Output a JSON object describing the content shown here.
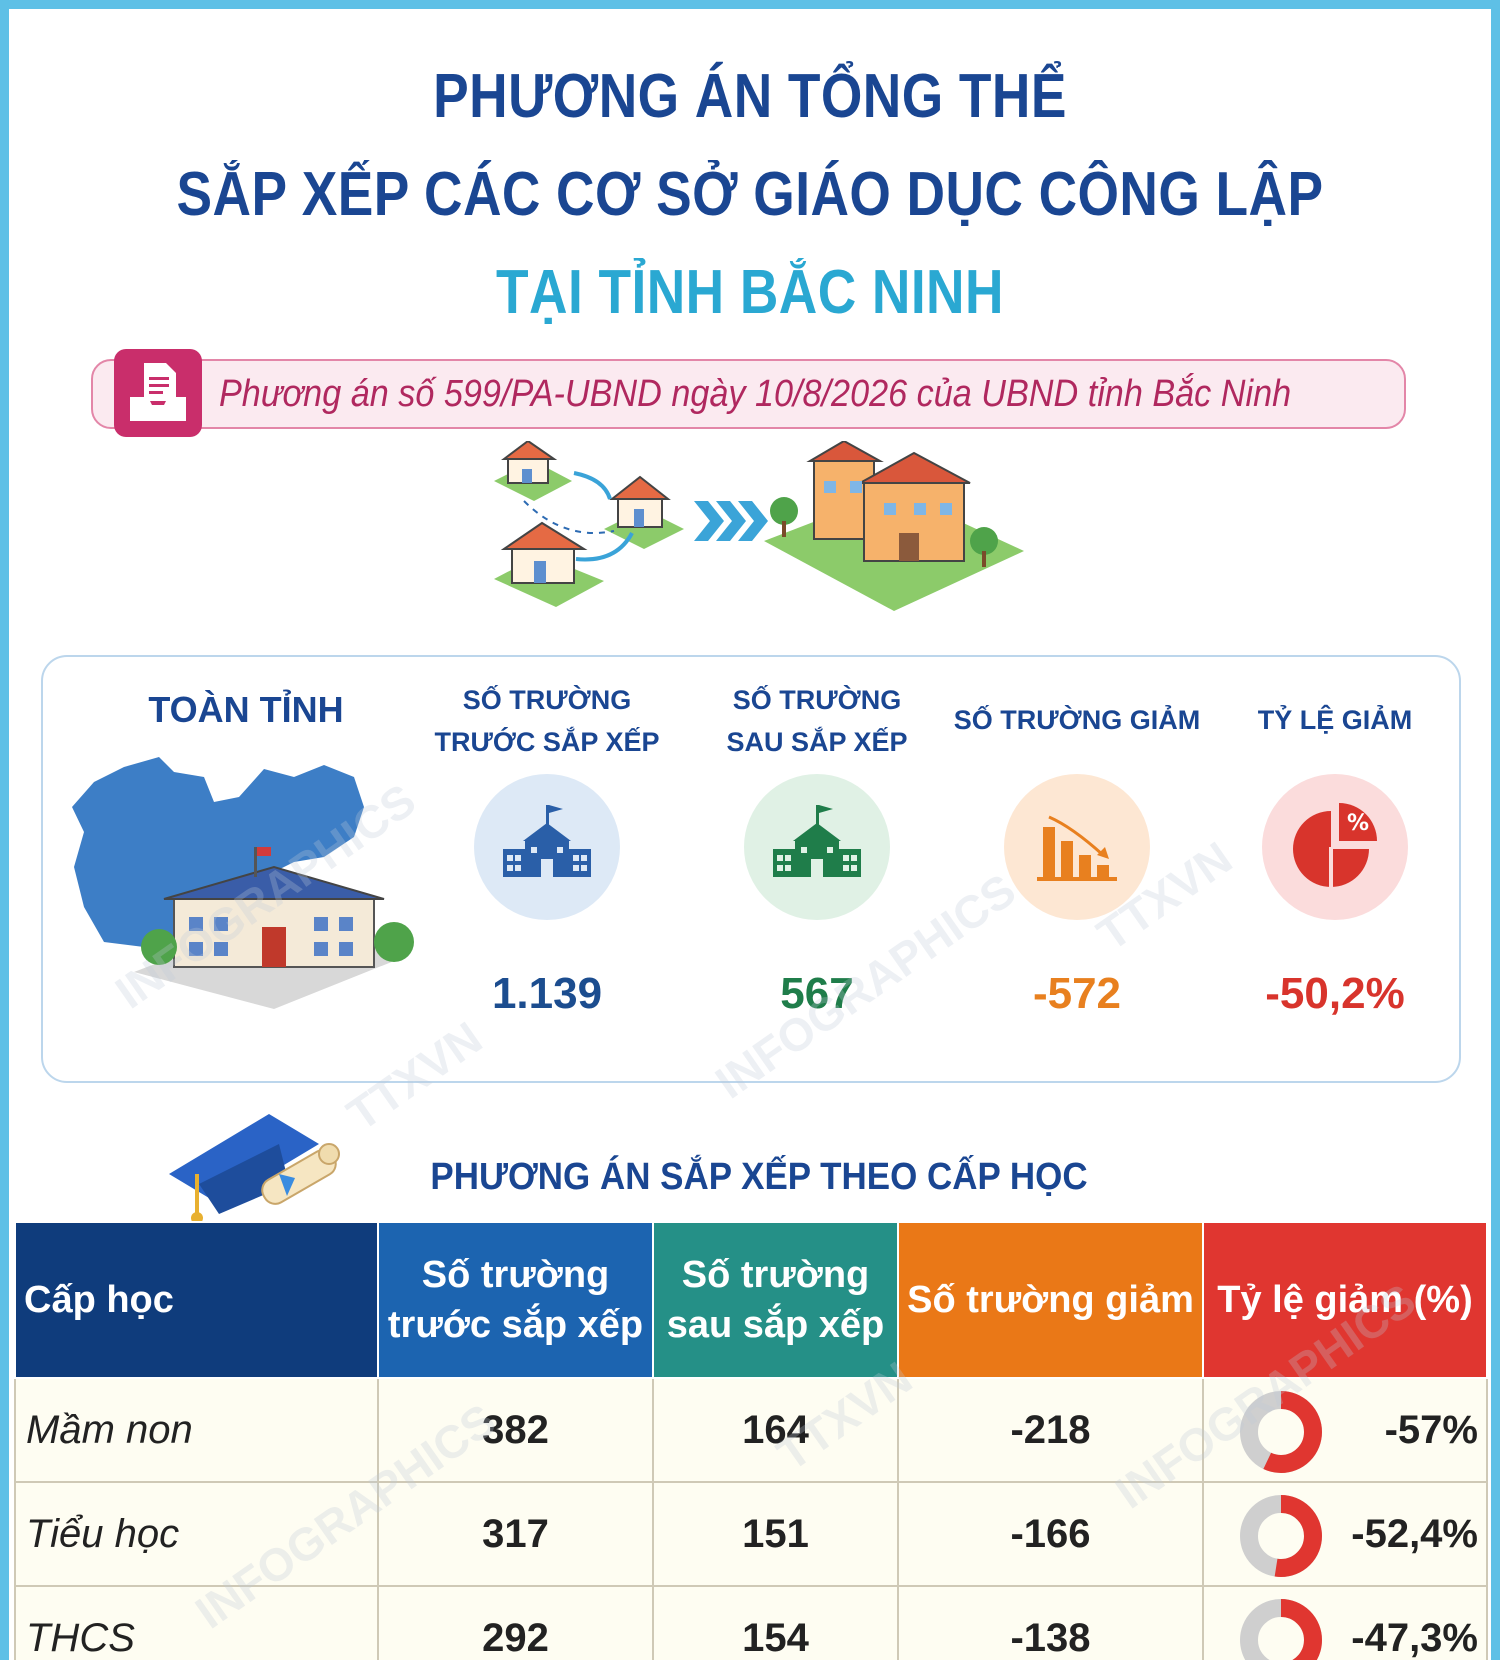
{
  "header": {
    "line1": "PHƯƠNG ÁN TỔNG THỂ",
    "line2": "SẮP XẾP CÁC CƠ SỞ GIÁO DỤC CÔNG LẬP",
    "line3": "TẠI TỈNH BẮC NINH"
  },
  "document": {
    "text": "Phương án số 599/PA-UBND ngày 10/8/2026 của UBND tỉnh Bắc Ninh",
    "icon": "document-inbox-icon"
  },
  "summary": {
    "region_label": "TOÀN TỈNH",
    "columns": [
      {
        "head_line1": "SỐ TRƯỜNG",
        "head_line2": "TRƯỚC SẮP XẾP",
        "value": "1.139",
        "color": "#1c4d8f",
        "bg": "#dde9f6",
        "icon": "school-icon"
      },
      {
        "head_line1": "SỐ TRƯỜNG",
        "head_line2": "SAU SẮP XẾP",
        "value": "567",
        "color": "#1f7d4a",
        "bg": "#e0f1e5",
        "icon": "school-icon"
      },
      {
        "head_line1": "SỐ TRƯỜNG GIẢM",
        "head_line2": "",
        "value": "-572",
        "color": "#e8801f",
        "bg": "#fde7d3",
        "icon": "declining-bar-chart-icon"
      },
      {
        "head_line1": "TỶ LỆ GIẢM",
        "head_line2": "",
        "value": "-50,2%",
        "color": "#d8342c",
        "bg": "#fbdcdc",
        "icon": "percent-pie-icon"
      }
    ]
  },
  "levels": {
    "title": "PHƯƠNG ÁN SẮP XẾP THEO CẤP HỌC",
    "headers": {
      "level": "Cấp học",
      "before_l1": "Số trường",
      "before_l2": "trước sắp xếp",
      "after_l1": "Số trường",
      "after_l2": "sau sắp xếp",
      "drop": "Số trường giảm",
      "rate": "Tỷ lệ giảm (%)"
    },
    "rows": [
      {
        "level": "Mầm non",
        "before": "382",
        "after": "164",
        "drop": "-218",
        "rate": "-57%",
        "rate_value": 57
      },
      {
        "level": "Tiểu học",
        "before": "317",
        "after": "151",
        "drop": "-166",
        "rate": "-52,4%",
        "rate_value": 52.4
      },
      {
        "level": "THCS",
        "before": "292",
        "after": "154",
        "drop": "-138",
        "rate": "-47,3%",
        "rate_value": 47.3
      }
    ]
  },
  "watermark": [
    "TTXVN",
    "INFOGRAPHICS"
  ]
}
